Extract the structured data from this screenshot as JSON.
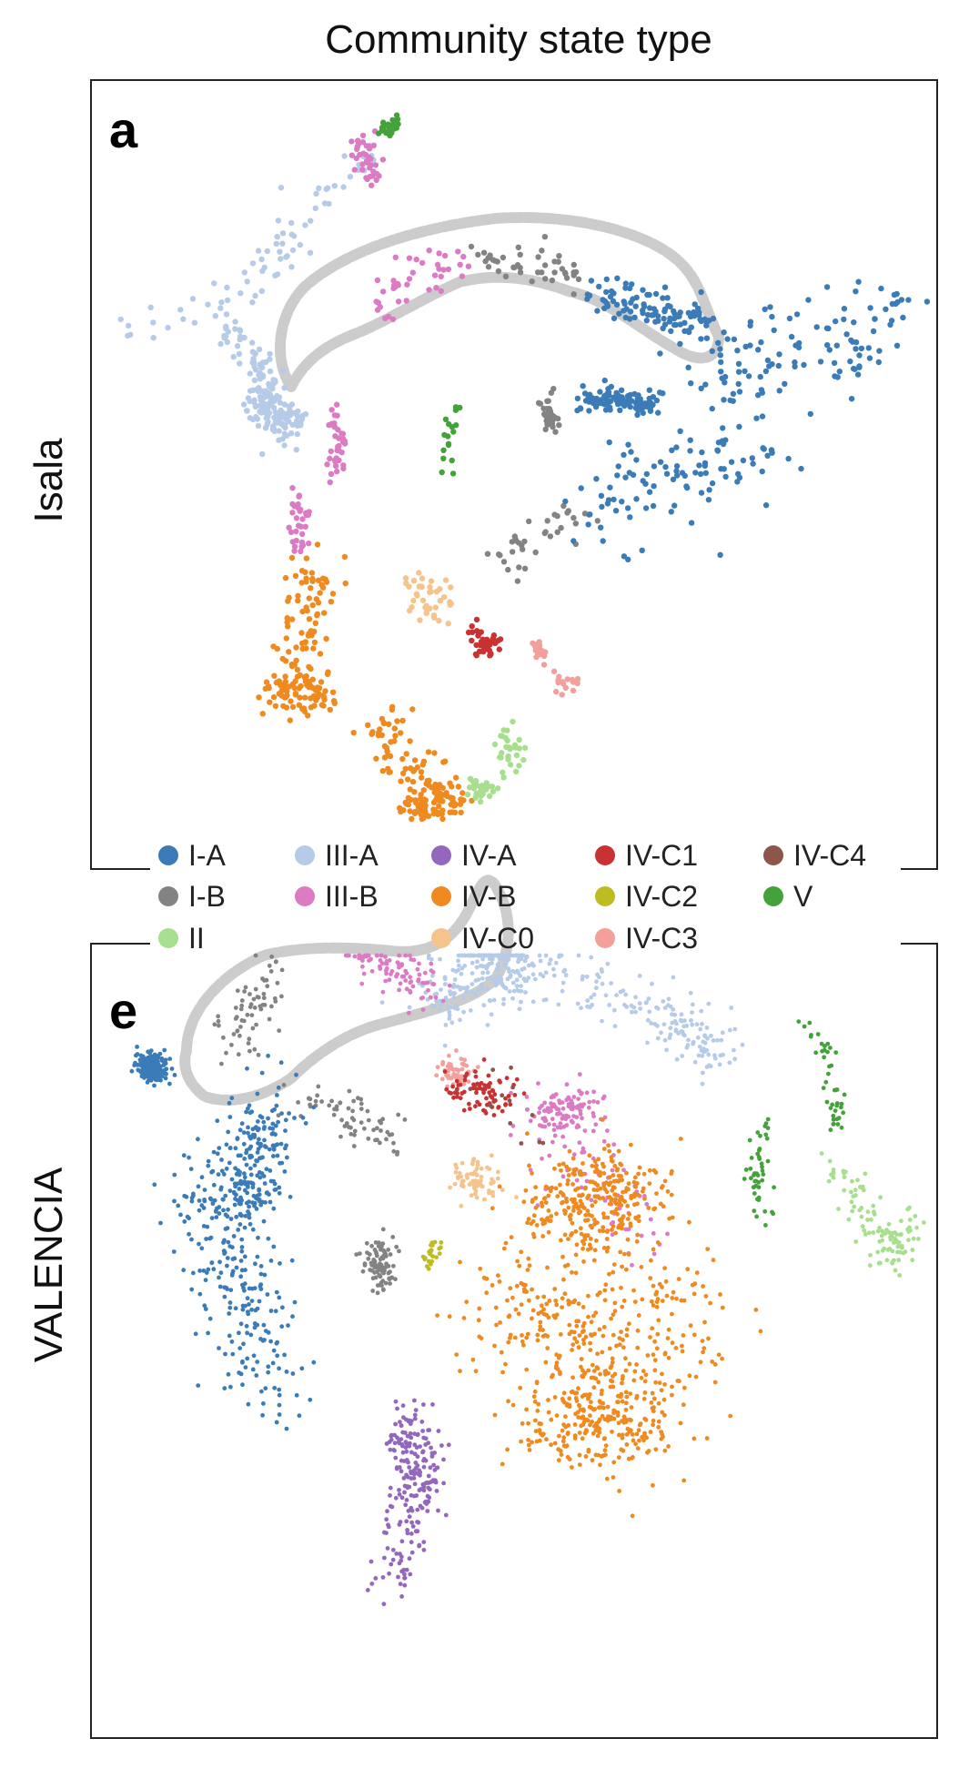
{
  "chart_data": {
    "type": "scatter",
    "title": "Community state type",
    "legend": {
      "placement": "between-panels",
      "entries": [
        {
          "label": "I-A",
          "color": "#3b7cb8"
        },
        {
          "label": "III-A",
          "color": "#b6cbe8"
        },
        {
          "label": "IV-A",
          "color": "#9367bd"
        },
        {
          "label": "IV-C1",
          "color": "#c83232"
        },
        {
          "label": "IV-C4",
          "color": "#8d564a"
        },
        {
          "label": "I-B",
          "color": "#838383"
        },
        {
          "label": "III-B",
          "color": "#dc7ac4"
        },
        {
          "label": "IV-B",
          "color": "#ee8a1f"
        },
        {
          "label": "IV-C2",
          "color": "#bdbd22"
        },
        {
          "label": "V",
          "color": "#43a33a"
        },
        {
          "label": "II",
          "color": "#a8df8f"
        },
        {
          "label": "IV-C0",
          "color": "#f4c48c"
        },
        {
          "label": "IV-C3",
          "color": "#f3a09c"
        }
      ]
    },
    "panels": [
      {
        "letter": "a",
        "row_label": "Isala",
        "grid": false,
        "clusters": [
          {
            "group": "III-A",
            "label": "III-A",
            "n": 260
          },
          {
            "group": "III-B",
            "label": "III-B",
            "n": 150
          },
          {
            "group": "I-B",
            "label": "I-B",
            "n": 110
          },
          {
            "group": "I-A",
            "label": "I-A",
            "n": 420
          },
          {
            "group": "V",
            "label": "V",
            "n": 45
          },
          {
            "group": "IV-B",
            "label": "IV-B",
            "n": 320
          },
          {
            "group": "IV-C0",
            "label": "IV-C0",
            "n": 40
          },
          {
            "group": "IV-C1",
            "label": "IV-C1",
            "n": 40
          },
          {
            "group": "IV-C3",
            "label": "IV-C3",
            "n": 35
          },
          {
            "group": "II",
            "label": "II",
            "n": 60
          }
        ]
      },
      {
        "letter": "e",
        "row_label": "VALENCIA",
        "grid": false,
        "clusters": [
          {
            "group": "III-A",
            "label": "III-A",
            "n": 420
          },
          {
            "group": "III-B",
            "label": "III-B",
            "n": 260
          },
          {
            "group": "I-B",
            "label": "I-B",
            "n": 220
          },
          {
            "group": "I-A",
            "label": "I-A",
            "n": 650
          },
          {
            "group": "IV-C3",
            "label": "IV-C3",
            "n": 50
          },
          {
            "group": "IV-C1",
            "label": "IV-C1",
            "n": 80
          },
          {
            "group": "IV-C0",
            "label": "IV-C0",
            "n": 70
          },
          {
            "group": "IV-C2",
            "label": "IV-C2",
            "n": 25
          },
          {
            "group": "IV-C4",
            "label": "IV-C4",
            "n": 12
          },
          {
            "group": "IV-B",
            "label": "IV-B",
            "n": 900
          },
          {
            "group": "IV-A",
            "label": "IV-A",
            "n": 220
          },
          {
            "group": "V",
            "label": "V",
            "n": 90
          },
          {
            "group": "II",
            "label": "II",
            "n": 110
          }
        ]
      }
    ]
  }
}
